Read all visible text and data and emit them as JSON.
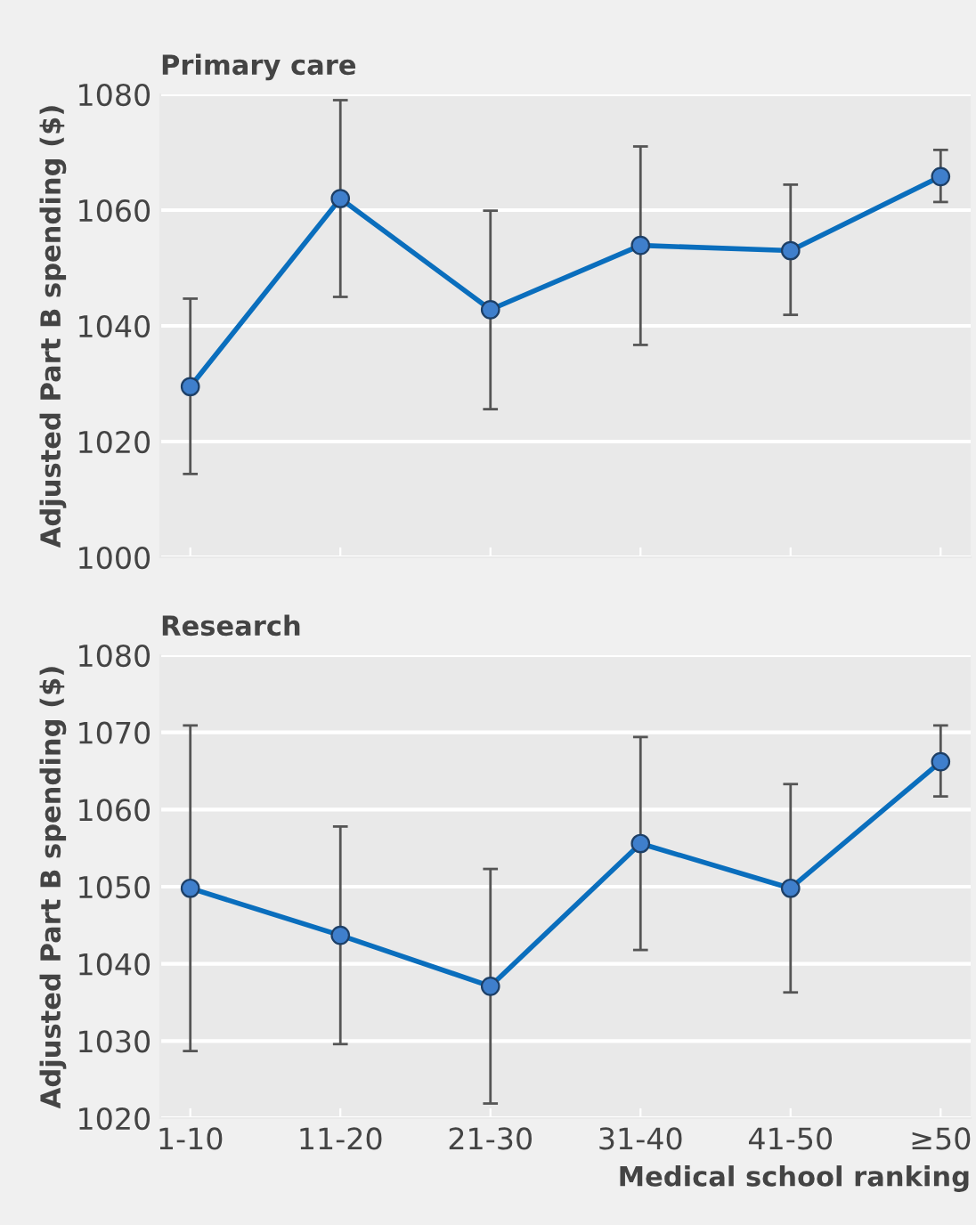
{
  "chart_data": [
    {
      "type": "line",
      "title": "Primary care",
      "ylabel": "Adjusted Part B spending ($)",
      "categories": [
        null,
        null,
        null,
        null,
        null,
        null
      ],
      "series": [
        {
          "color": "#0a6ebd",
          "values": [
            1029.5,
            1062,
            1042.8,
            1053.9,
            1053,
            1065.8
          ],
          "errors": [
            [
              1014.4,
              1044.7
            ],
            [
              1045,
              1079
            ],
            [
              1025.6,
              1059.9
            ],
            [
              1036.7,
              1071
            ],
            [
              1041.9,
              1064.4
            ],
            [
              1061.4,
              1070.4
            ]
          ]
        }
      ],
      "ylim": [
        1000,
        1080
      ],
      "yticks": [
        1000,
        1020,
        1040,
        1060,
        1080
      ],
      "grid": "y",
      "marker": "circle",
      "line_style": "solid",
      "tick_labels": "y"
    },
    {
      "type": "line",
      "title": "Research",
      "ylabel": "Adjusted Part B spending ($)",
      "xlabel": "Medical school ranking",
      "categories": [
        "1-10",
        "11-20",
        "21-30",
        "31-40",
        "41-50",
        "≥50"
      ],
      "series": [
        {
          "color": "#0a6ebd",
          "values": [
            1049.8,
            1043.7,
            1037.1,
            1055.6,
            1049.8,
            1066.2
          ],
          "errors": [
            [
              1028.7,
              1070.9
            ],
            [
              1029.6,
              1057.8
            ],
            [
              1021.9,
              1052.3
            ],
            [
              1041.8,
              1069.4
            ],
            [
              1036.3,
              1063.3
            ],
            [
              1061.7,
              1070.9
            ]
          ]
        }
      ],
      "ylim": [
        1020,
        1080
      ],
      "yticks": [
        1020,
        1030,
        1040,
        1050,
        1060,
        1070,
        1080
      ],
      "grid": "y",
      "marker": "circle",
      "line_style": "solid"
    }
  ]
}
